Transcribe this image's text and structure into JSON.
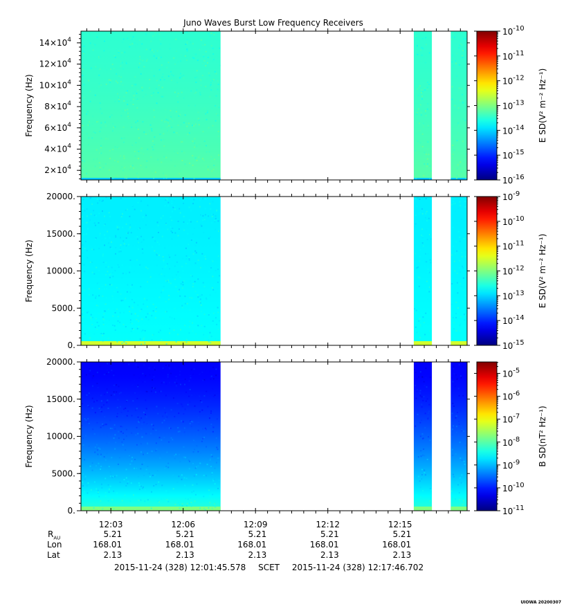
{
  "chart_data": {
    "type": "heatmap",
    "title": "Juno Waves Burst Low Frequency Receivers",
    "x_axis": {
      "tick_labels": [
        "12:03",
        "12:06",
        "12:09",
        "12:12",
        "12:15"
      ],
      "start": "2015-11-24 12:01:45.578",
      "end": "2015-11-24 12:17:46.702"
    },
    "data_intervals": [
      {
        "start": "12:01:45",
        "end": "12:07:33"
      },
      {
        "start": "12:15:34",
        "end": "12:16:19"
      },
      {
        "start": "12:17:06",
        "end": "12:17:47"
      }
    ],
    "panels": [
      {
        "ylabel": "Frequency (Hz)",
        "ylim": [
          11000,
          151000
        ],
        "yticks": [
          {
            "value": 20000,
            "base": "2×10",
            "exp": "4"
          },
          {
            "value": 40000,
            "base": "4×10",
            "exp": "4"
          },
          {
            "value": 60000,
            "base": "6×10",
            "exp": "4"
          },
          {
            "value": 80000,
            "base": "8×10",
            "exp": "4"
          },
          {
            "value": 100000,
            "base": "10×10",
            "exp": "4"
          },
          {
            "value": 120000,
            "base": "12×10",
            "exp": "4"
          },
          {
            "value": 140000,
            "base": "14×10",
            "exp": "4"
          }
        ],
        "colorbar_label": "E SD(V² m⁻² Hz⁻¹)",
        "colorbar_log_range": [
          -16,
          -10
        ],
        "colorbar_ticks": [
          "-16",
          "-15",
          "-14",
          "-13",
          "-12",
          "-11",
          "-10"
        ],
        "fill_profile": {
          "top": 0.42,
          "bottom": 0.46,
          "baseline_band": 0.32
        }
      },
      {
        "ylabel": "Frequency (Hz)",
        "ylim": [
          0,
          20000
        ],
        "yticks": [
          {
            "value": 0,
            "base": "0.",
            "exp": ""
          },
          {
            "value": 5000,
            "base": "5000.",
            "exp": ""
          },
          {
            "value": 10000,
            "base": "10000.",
            "exp": ""
          },
          {
            "value": 15000,
            "base": "15000.",
            "exp": ""
          },
          {
            "value": 20000,
            "base": "20000.",
            "exp": ""
          }
        ],
        "colorbar_label": "E SD(V² m⁻² Hz⁻¹)",
        "colorbar_log_range": [
          -15,
          -9
        ],
        "colorbar_ticks": [
          "-15",
          "-14",
          "-13",
          "-12",
          "-11",
          "-10",
          "-9"
        ],
        "fill_profile": {
          "top": 0.36,
          "bottom": 0.38,
          "baseline_band": 0.58
        }
      },
      {
        "ylabel": "Frequency (Hz)",
        "ylim": [
          0,
          20000
        ],
        "yticks": [
          {
            "value": 0,
            "base": "0.",
            "exp": ""
          },
          {
            "value": 5000,
            "base": "5000.",
            "exp": ""
          },
          {
            "value": 10000,
            "base": "10000.",
            "exp": ""
          },
          {
            "value": 15000,
            "base": "15000.",
            "exp": ""
          },
          {
            "value": 20000,
            "base": "20000.",
            "exp": ""
          }
        ],
        "colorbar_label": "B SD(nT² Hz⁻¹)",
        "colorbar_log_range": [
          -11,
          -4.5
        ],
        "colorbar_ticks": [
          "-11",
          "-10",
          "-9",
          "-8",
          "-7",
          "-6",
          "-5"
        ],
        "fill_profile": {
          "top": 0.12,
          "bottom": 0.42,
          "baseline_band": 0.5
        }
      }
    ]
  },
  "ephemeris": {
    "rows": [
      {
        "label": "R",
        "sub": "AU",
        "values": [
          "5.21",
          "5.21",
          "5.21",
          "5.21",
          "5.21"
        ]
      },
      {
        "label": "Lon",
        "sub": "",
        "values": [
          "168.01",
          "168.01",
          "168.01",
          "168.01",
          "168.01"
        ]
      },
      {
        "label": "Lat",
        "sub": "",
        "values": [
          "2.13",
          "2.13",
          "2.13",
          "2.13",
          "2.13"
        ]
      }
    ]
  },
  "footer": {
    "start": "2015-11-24 (328) 12:01:45.578",
    "frame": "SCET",
    "end": "2015-11-24 (328) 12:17:46.702"
  },
  "stamp": "UIOWA 20200307"
}
